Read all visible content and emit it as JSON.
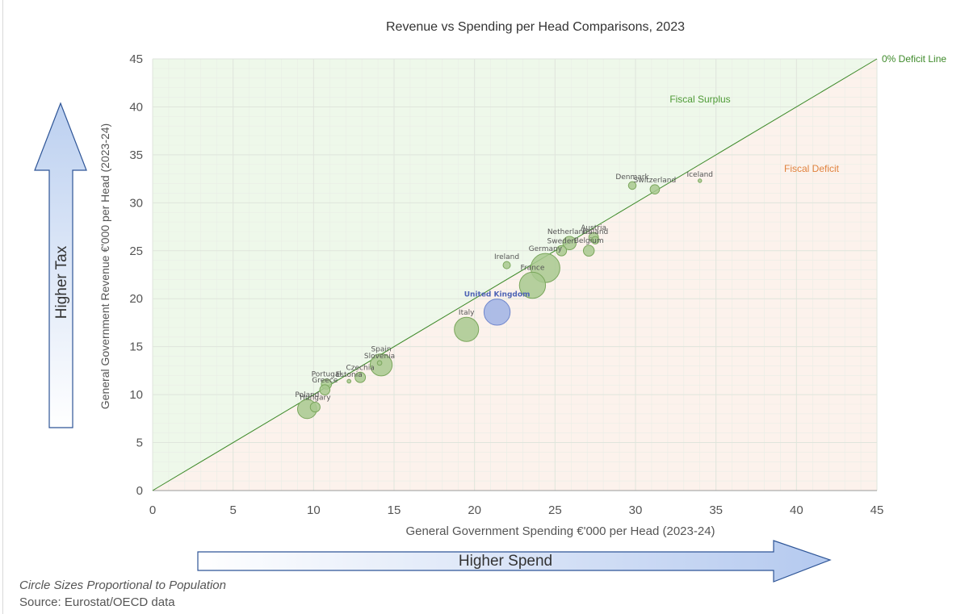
{
  "chart_data": {
    "type": "scatter",
    "title": "Revenue vs Spending  per Head Comparisons, 2023",
    "xlabel": "General Government Spending €'000 per Head (2023-24)",
    "ylabel": "General Government Revenue  €'000 per Head (2023-24)",
    "xlim": [
      0,
      45
    ],
    "ylim": [
      0,
      45
    ],
    "x_ticks": [
      0,
      5,
      10,
      15,
      20,
      25,
      30,
      35,
      40,
      45
    ],
    "y_ticks": [
      0,
      5,
      10,
      15,
      20,
      25,
      30,
      35,
      40,
      45
    ],
    "grid": true,
    "bubble_size": "population",
    "diagonal_label": "0% Deficit Line",
    "region_labels": {
      "surplus": "Fiscal Surplus",
      "deficit": "Fiscal Deficit"
    },
    "arrow_labels": {
      "y": "Higher Tax",
      "x": "Higher Spend"
    },
    "colors": {
      "bubble_fill": "#a8c98f",
      "bubble_stroke": "#7aa65c",
      "uk_fill": "#a9b8e6",
      "uk_stroke": "#6f86cc",
      "uk_label": "#4f64b5",
      "diagonal": "#3e8a2a",
      "surplus_bg": "#eef8ea",
      "deficit_bg": "#fcf2ec",
      "surplus_text": "#4d9a35",
      "deficit_text": "#e0823d",
      "grid": "#dfe5dc",
      "arrow_top": "#bcd0f0",
      "arrow_bottom": "#ffffff",
      "arrow_stroke": "#2e5597"
    },
    "points": [
      {
        "label": "Denmark",
        "x": 29.8,
        "y": 31.8,
        "population": 5.9
      },
      {
        "label": "Switzerland",
        "x": 31.2,
        "y": 31.4,
        "population": 8.8
      },
      {
        "label": "Iceland",
        "x": 34.0,
        "y": 32.3,
        "population": 0.4
      },
      {
        "label": "Netherlands",
        "x": 25.9,
        "y": 25.8,
        "population": 17.8
      },
      {
        "label": "Austria",
        "x": 27.4,
        "y": 26.4,
        "population": 9.1
      },
      {
        "label": "Finland",
        "x": 27.5,
        "y": 26.1,
        "population": 5.6
      },
      {
        "label": "Sweden",
        "x": 25.4,
        "y": 25.0,
        "population": 10.5
      },
      {
        "label": "Belgium",
        "x": 27.1,
        "y": 25.0,
        "population": 11.8
      },
      {
        "label": "Germany",
        "x": 24.4,
        "y": 23.2,
        "population": 84.5
      },
      {
        "label": "Ireland",
        "x": 22.0,
        "y": 23.5,
        "population": 5.3
      },
      {
        "label": "France",
        "x": 23.6,
        "y": 21.4,
        "population": 68.2
      },
      {
        "label": "United Kingdom",
        "x": 21.4,
        "y": 18.6,
        "population": 68.3,
        "highlight": true
      },
      {
        "label": "Italy",
        "x": 19.5,
        "y": 16.8,
        "population": 59.0
      },
      {
        "label": "Spain",
        "x": 14.2,
        "y": 13.1,
        "population": 48.4
      },
      {
        "label": "Slovenia",
        "x": 14.1,
        "y": 13.3,
        "population": 2.1
      },
      {
        "label": "Czechia",
        "x": 12.9,
        "y": 11.8,
        "population": 10.8
      },
      {
        "label": "Estonia",
        "x": 12.2,
        "y": 11.4,
        "population": 1.4
      },
      {
        "label": "Portugal",
        "x": 10.8,
        "y": 11.1,
        "population": 10.5
      },
      {
        "label": "Greece",
        "x": 10.7,
        "y": 10.5,
        "population": 10.4
      },
      {
        "label": "Poland",
        "x": 9.6,
        "y": 8.5,
        "population": 36.7
      },
      {
        "label": "Hungary",
        "x": 10.1,
        "y": 8.7,
        "population": 9.6
      }
    ]
  },
  "footnotes": {
    "note": "Circle Sizes Proportional to Population",
    "source": "Source: Eurostat/OECD data"
  }
}
